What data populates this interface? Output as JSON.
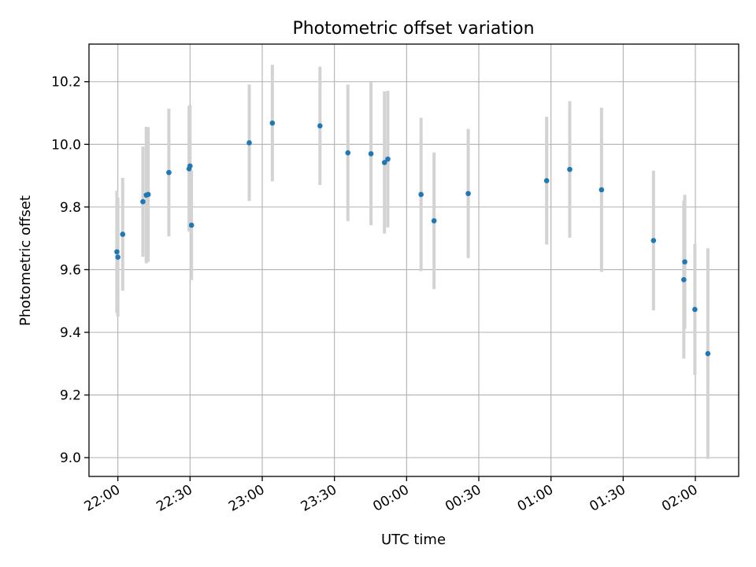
{
  "chart_data": {
    "type": "scatter",
    "title": "Photometric offset variation",
    "xlabel": "UTC time",
    "ylabel": "Photometric offset",
    "x_unit": "UTC time (HH:MM)",
    "xlim": [
      "21:48",
      "02:18"
    ],
    "ylim": [
      8.94,
      10.32
    ],
    "grid": true,
    "colors": {
      "marker": "#1f77b4",
      "errorbar": "#d3d3d3"
    },
    "x_ticks": [
      "22:00",
      "22:30",
      "23:00",
      "23:30",
      "00:00",
      "00:30",
      "01:00",
      "01:30",
      "02:00"
    ],
    "y_ticks": [
      "9.0",
      "9.2",
      "9.4",
      "9.6",
      "9.8",
      "10.0",
      "10.2"
    ],
    "points": [
      {
        "t": "21:59:36",
        "y": 9.657,
        "err": 0.195
      },
      {
        "t": "22:00:00",
        "y": 9.64,
        "err": 0.19
      },
      {
        "t": "22:02:00",
        "y": 9.713,
        "err": 0.18
      },
      {
        "t": "22:10:24",
        "y": 9.817,
        "err": 0.176
      },
      {
        "t": "22:11:48",
        "y": 9.838,
        "err": 0.218
      },
      {
        "t": "22:12:36",
        "y": 9.84,
        "err": 0.215
      },
      {
        "t": "22:21:12",
        "y": 9.91,
        "err": 0.204
      },
      {
        "t": "22:29:36",
        "y": 9.922,
        "err": 0.2
      },
      {
        "t": "22:30:00",
        "y": 9.931,
        "err": 0.195
      },
      {
        "t": "22:30:36",
        "y": 9.742,
        "err": 0.175
      },
      {
        "t": "22:54:36",
        "y": 10.005,
        "err": 0.186
      },
      {
        "t": "23:04:12",
        "y": 10.068,
        "err": 0.186
      },
      {
        "t": "23:24:00",
        "y": 10.059,
        "err": 0.189
      },
      {
        "t": "23:35:36",
        "y": 9.973,
        "err": 0.218
      },
      {
        "t": "23:45:12",
        "y": 9.97,
        "err": 0.228
      },
      {
        "t": "23:50:48",
        "y": 9.942,
        "err": 0.227
      },
      {
        "t": "23:52:12",
        "y": 9.953,
        "err": 0.218
      },
      {
        "t": "00:06:00",
        "y": 9.84,
        "err": 0.245
      },
      {
        "t": "00:11:24",
        "y": 9.756,
        "err": 0.218
      },
      {
        "t": "00:25:36",
        "y": 9.843,
        "err": 0.206
      },
      {
        "t": "00:58:12",
        "y": 9.884,
        "err": 0.204
      },
      {
        "t": "01:07:48",
        "y": 9.92,
        "err": 0.218
      },
      {
        "t": "01:21:00",
        "y": 9.855,
        "err": 0.262
      },
      {
        "t": "01:42:36",
        "y": 9.693,
        "err": 0.223
      },
      {
        "t": "01:55:12",
        "y": 9.568,
        "err": 0.252
      },
      {
        "t": "01:55:36",
        "y": 9.625,
        "err": 0.214
      },
      {
        "t": "01:59:48",
        "y": 9.473,
        "err": 0.209
      },
      {
        "t": "02:05:12",
        "y": 9.332,
        "err": 0.336
      }
    ]
  }
}
